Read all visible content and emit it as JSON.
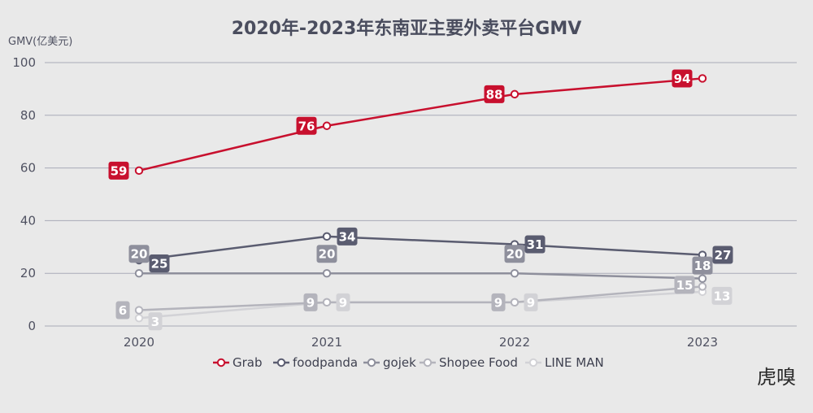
{
  "chart_data": {
    "type": "line",
    "title": "2020年-2023年东南亚主要外卖平台GMV",
    "ylabel": "GMV(亿美元)",
    "xlabel": "",
    "categories": [
      "2020",
      "2021",
      "2022",
      "2023"
    ],
    "ylim": [
      0,
      100
    ],
    "yticks": [
      0,
      20,
      40,
      60,
      80,
      100
    ],
    "grid": true,
    "legend_position": "bottom",
    "series": [
      {
        "name": "Grab",
        "values": [
          59,
          76,
          88,
          94
        ],
        "color": "#c8102e"
      },
      {
        "name": "foodpanda",
        "values": [
          25,
          34,
          31,
          27
        ],
        "color": "#5a5c70"
      },
      {
        "name": "gojek",
        "values": [
          20,
          20,
          20,
          18
        ],
        "color": "#8e8f9c"
      },
      {
        "name": "Shopee Food",
        "values": [
          6,
          9,
          9,
          15
        ],
        "color": "#b4b4bc"
      },
      {
        "name": "LINE MAN",
        "values": [
          3,
          9,
          9,
          13
        ],
        "color": "#d2d2d6"
      }
    ]
  },
  "watermark": "虎嗅"
}
